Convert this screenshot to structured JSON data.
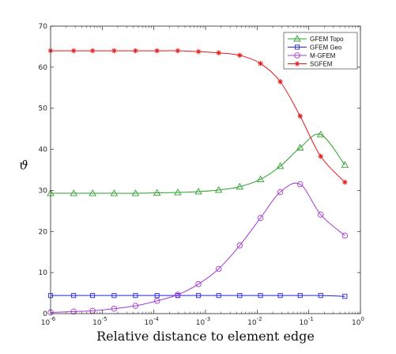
{
  "chart_data": {
    "type": "line",
    "xscale": "log",
    "xlim": [
      1e-06,
      1
    ],
    "ylim": [
      0,
      70
    ],
    "xlabel": "Relative distance to element edge",
    "ylabel": "ϑ",
    "grid": false,
    "legend_position": "top-right",
    "x_tick_labels": [
      {
        "base": "10",
        "exp": "-6"
      },
      {
        "base": "10",
        "exp": "-5"
      },
      {
        "base": "10",
        "exp": "-4"
      },
      {
        "base": "10",
        "exp": "-3"
      },
      {
        "base": "10",
        "exp": "-2"
      },
      {
        "base": "10",
        "exp": "-1"
      },
      {
        "base": "10",
        "exp": "0"
      }
    ],
    "y_ticks": [
      0,
      10,
      20,
      30,
      40,
      50,
      60,
      70
    ],
    "x": [
      1e-06,
      2.8e-06,
      6.5e-06,
      1.7e-05,
      4.4e-05,
      0.000115,
      0.00029,
      0.00073,
      0.0018,
      0.0046,
      0.0116,
      0.028,
      0.068,
      0.17,
      0.5
    ],
    "series": [
      {
        "name": "GFEM Topo",
        "marker": "triangle",
        "color": "#2ca02c",
        "values": [
          29.3,
          29.3,
          29.3,
          29.3,
          29.3,
          29.4,
          29.5,
          29.7,
          30.1,
          30.9,
          32.7,
          35.9,
          40.4,
          43.6,
          36.2
        ]
      },
      {
        "name": "GFEM Geo",
        "marker": "square",
        "color": "#2525e0",
        "values": [
          4.4,
          4.4,
          4.4,
          4.4,
          4.4,
          4.4,
          4.4,
          4.4,
          4.4,
          4.4,
          4.4,
          4.4,
          4.4,
          4.4,
          4.2
        ]
      },
      {
        "name": "M-GFEM",
        "marker": "circle",
        "color": "#a53bd3",
        "values": [
          0.3,
          0.5,
          0.7,
          1.2,
          1.9,
          3.1,
          4.6,
          7.2,
          10.9,
          16.6,
          23.3,
          29.6,
          31.5,
          24.1,
          19.0
        ]
      },
      {
        "name": "SGFEM",
        "marker": "asterisk",
        "color": "#e41a1c",
        "values": [
          64.0,
          64.0,
          64.0,
          64.0,
          64.0,
          64.0,
          64.0,
          63.8,
          63.5,
          62.9,
          60.9,
          56.5,
          48.1,
          38.3,
          32.0
        ]
      }
    ]
  }
}
